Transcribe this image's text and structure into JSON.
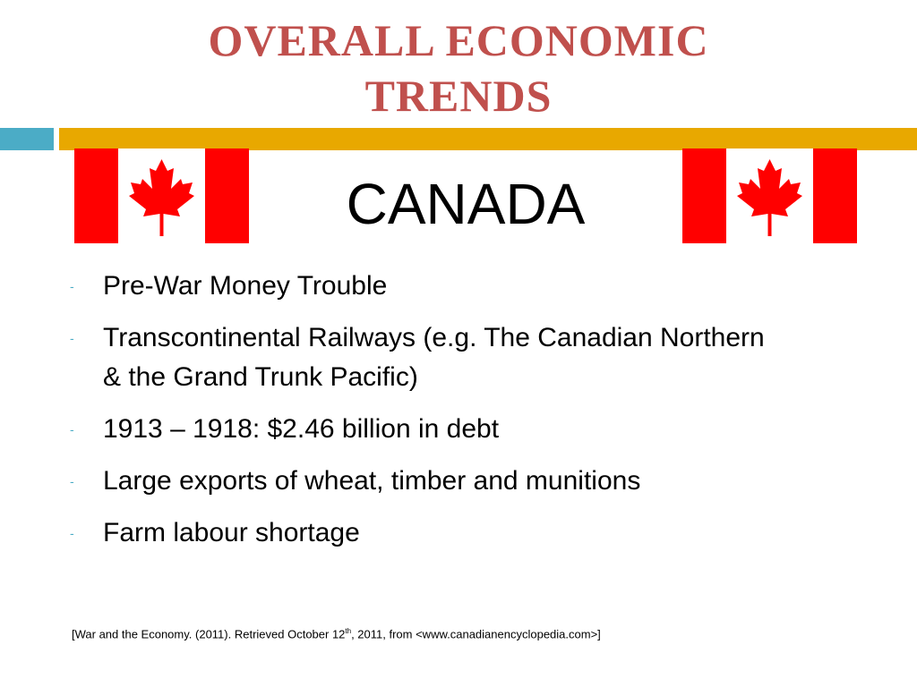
{
  "header": {
    "title_lines": [
      "OVERALL ECONOMIC",
      "TRENDS"
    ],
    "subtitle": "CANADA"
  },
  "bullets": [
    {
      "marker": "-",
      "text": "Pre-War Money Trouble"
    },
    {
      "marker": "-",
      "text": "Transcontinental Railways (e.g. The Canadian Northern & the Grand Trunk Pacific)"
    },
    {
      "marker": "-",
      "text": "1913 – 1918: $2.46 billion in debt"
    },
    {
      "marker": "-",
      "text": "Large exports of wheat, timber and munitions"
    },
    {
      "marker": "-",
      "text": "Farm labour shortage"
    }
  ],
  "citation": {
    "before": "[War and the Economy.  (2011). Retrieved October 12",
    "superscript": "th",
    "after": ", 2011, from <www.canadianencyclopedia.com>]"
  }
}
